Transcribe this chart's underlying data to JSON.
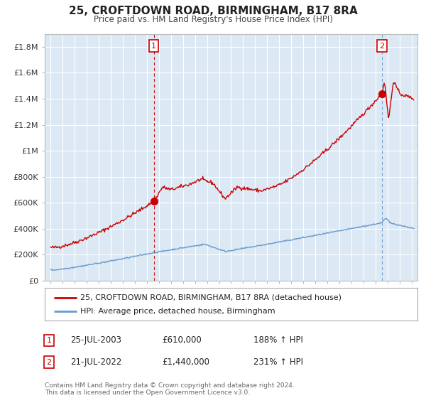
{
  "title": "25, CROFTDOWN ROAD, BIRMINGHAM, B17 8RA",
  "subtitle": "Price paid vs. HM Land Registry's House Price Index (HPI)",
  "background_color": "#ffffff",
  "plot_bg_color": "#dce9f5",
  "red_line_color": "#cc0000",
  "blue_line_color": "#6699cc",
  "grid_color": "#ffffff",
  "transaction1": {
    "date": "25-JUL-2003",
    "price": 610000,
    "hpi_pct": "188%",
    "x": 2003.57
  },
  "transaction2": {
    "date": "21-JUL-2022",
    "price": 1440000,
    "hpi_pct": "231%",
    "x": 2022.55
  },
  "ylim": [
    0,
    1900000
  ],
  "xlim": [
    1994.5,
    2025.5
  ],
  "yticks": [
    0,
    200000,
    400000,
    600000,
    800000,
    1000000,
    1200000,
    1400000,
    1600000,
    1800000
  ],
  "ytick_labels": [
    "£0",
    "£200K",
    "£400K",
    "£600K",
    "£800K",
    "£1M",
    "£1.2M",
    "£1.4M",
    "£1.6M",
    "£1.8M"
  ],
  "xticks": [
    1995,
    1996,
    1997,
    1998,
    1999,
    2000,
    2001,
    2002,
    2003,
    2004,
    2005,
    2006,
    2007,
    2008,
    2009,
    2010,
    2011,
    2012,
    2013,
    2014,
    2015,
    2016,
    2017,
    2018,
    2019,
    2020,
    2021,
    2022,
    2023,
    2024,
    2025
  ],
  "legend_label_red": "25, CROFTDOWN ROAD, BIRMINGHAM, B17 8RA (detached house)",
  "legend_label_blue": "HPI: Average price, detached house, Birmingham",
  "footer": "Contains HM Land Registry data © Crown copyright and database right 2024.\nThis data is licensed under the Open Government Licence v3.0.",
  "annotation1_label": "1",
  "annotation2_label": "2",
  "red_dot_color": "#cc0000",
  "vline1_color": "#cc0000",
  "vline2_color": "#6699cc"
}
